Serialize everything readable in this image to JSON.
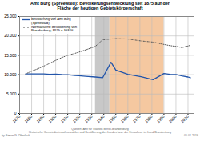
{
  "chart_data": {
    "type": "line",
    "title": "Amt Burg (Spreewald): Bevölkerungsentwicklung seit 1875 auf der\nFläche der heutigen Gebietskörperschaft",
    "annotations": [
      "Quellen: Amt für Statistik Berlin-Brandenburg\nHistorische Gemeindeeinwohnerzahlen und Bevölkerung des Landes bzw. der Einwohner im Land Brandenburg",
      "by Simon G. Oberlack",
      "05.01.2016"
    ],
    "x": [
      1875,
      1880,
      1885,
      1890,
      1895,
      1900,
      1905,
      1910,
      1916,
      1919,
      1925,
      1933,
      1939,
      1946,
      1950,
      1960,
      1971,
      1981,
      1990,
      1995,
      2000,
      2005,
      2010,
      2012
    ],
    "series": [
      {
        "name": "Bevölkerung von Amt Burg\n(Spreewald)",
        "color": "#2255aa",
        "line_style": "solid",
        "values": [
          10200,
          10200,
          10200,
          10200,
          10100,
          10150,
          10050,
          10000,
          9800,
          9750,
          9600,
          9400,
          9200,
          13200,
          11200,
          10100,
          9500,
          8700,
          10300,
          10100,
          10050,
          9700,
          9400,
          9200
        ]
      },
      {
        "name": "Normalisierte Bevölkerung von\nBrandenburg, 1875 = 10190",
        "color": "#555555",
        "line_style": "dotted",
        "values": [
          10200,
          10900,
          11500,
          12200,
          12900,
          13700,
          14400,
          15000,
          15500,
          15800,
          16400,
          17300,
          19000,
          19200,
          19300,
          19200,
          18700,
          18400,
          17800,
          17500,
          17300,
          17000,
          17400,
          17600
        ]
      }
    ],
    "spans": [
      {
        "start": 1933,
        "end": 1945,
        "color": "#c8c8c8"
      },
      {
        "start": 1945,
        "end": 1990,
        "color": "#f5c8a0"
      }
    ],
    "xlim": [
      1870,
      2015
    ],
    "xticks": [
      1870,
      1880,
      1890,
      1900,
      1910,
      1920,
      1930,
      1940,
      1950,
      1960,
      1970,
      1980,
      1990,
      2000,
      2010
    ],
    "ylim": [
      0,
      25000
    ],
    "yticks": [
      0,
      {
        "value": 5000,
        "label": "5.000"
      },
      {
        "value": 10000,
        "label": "10.000"
      },
      {
        "value": 15000,
        "label": "15.000"
      },
      {
        "value": 20000,
        "label": "20.000"
      },
      {
        "value": 25000,
        "label": "25.000"
      }
    ],
    "grid": true,
    "legend": "upper left"
  }
}
